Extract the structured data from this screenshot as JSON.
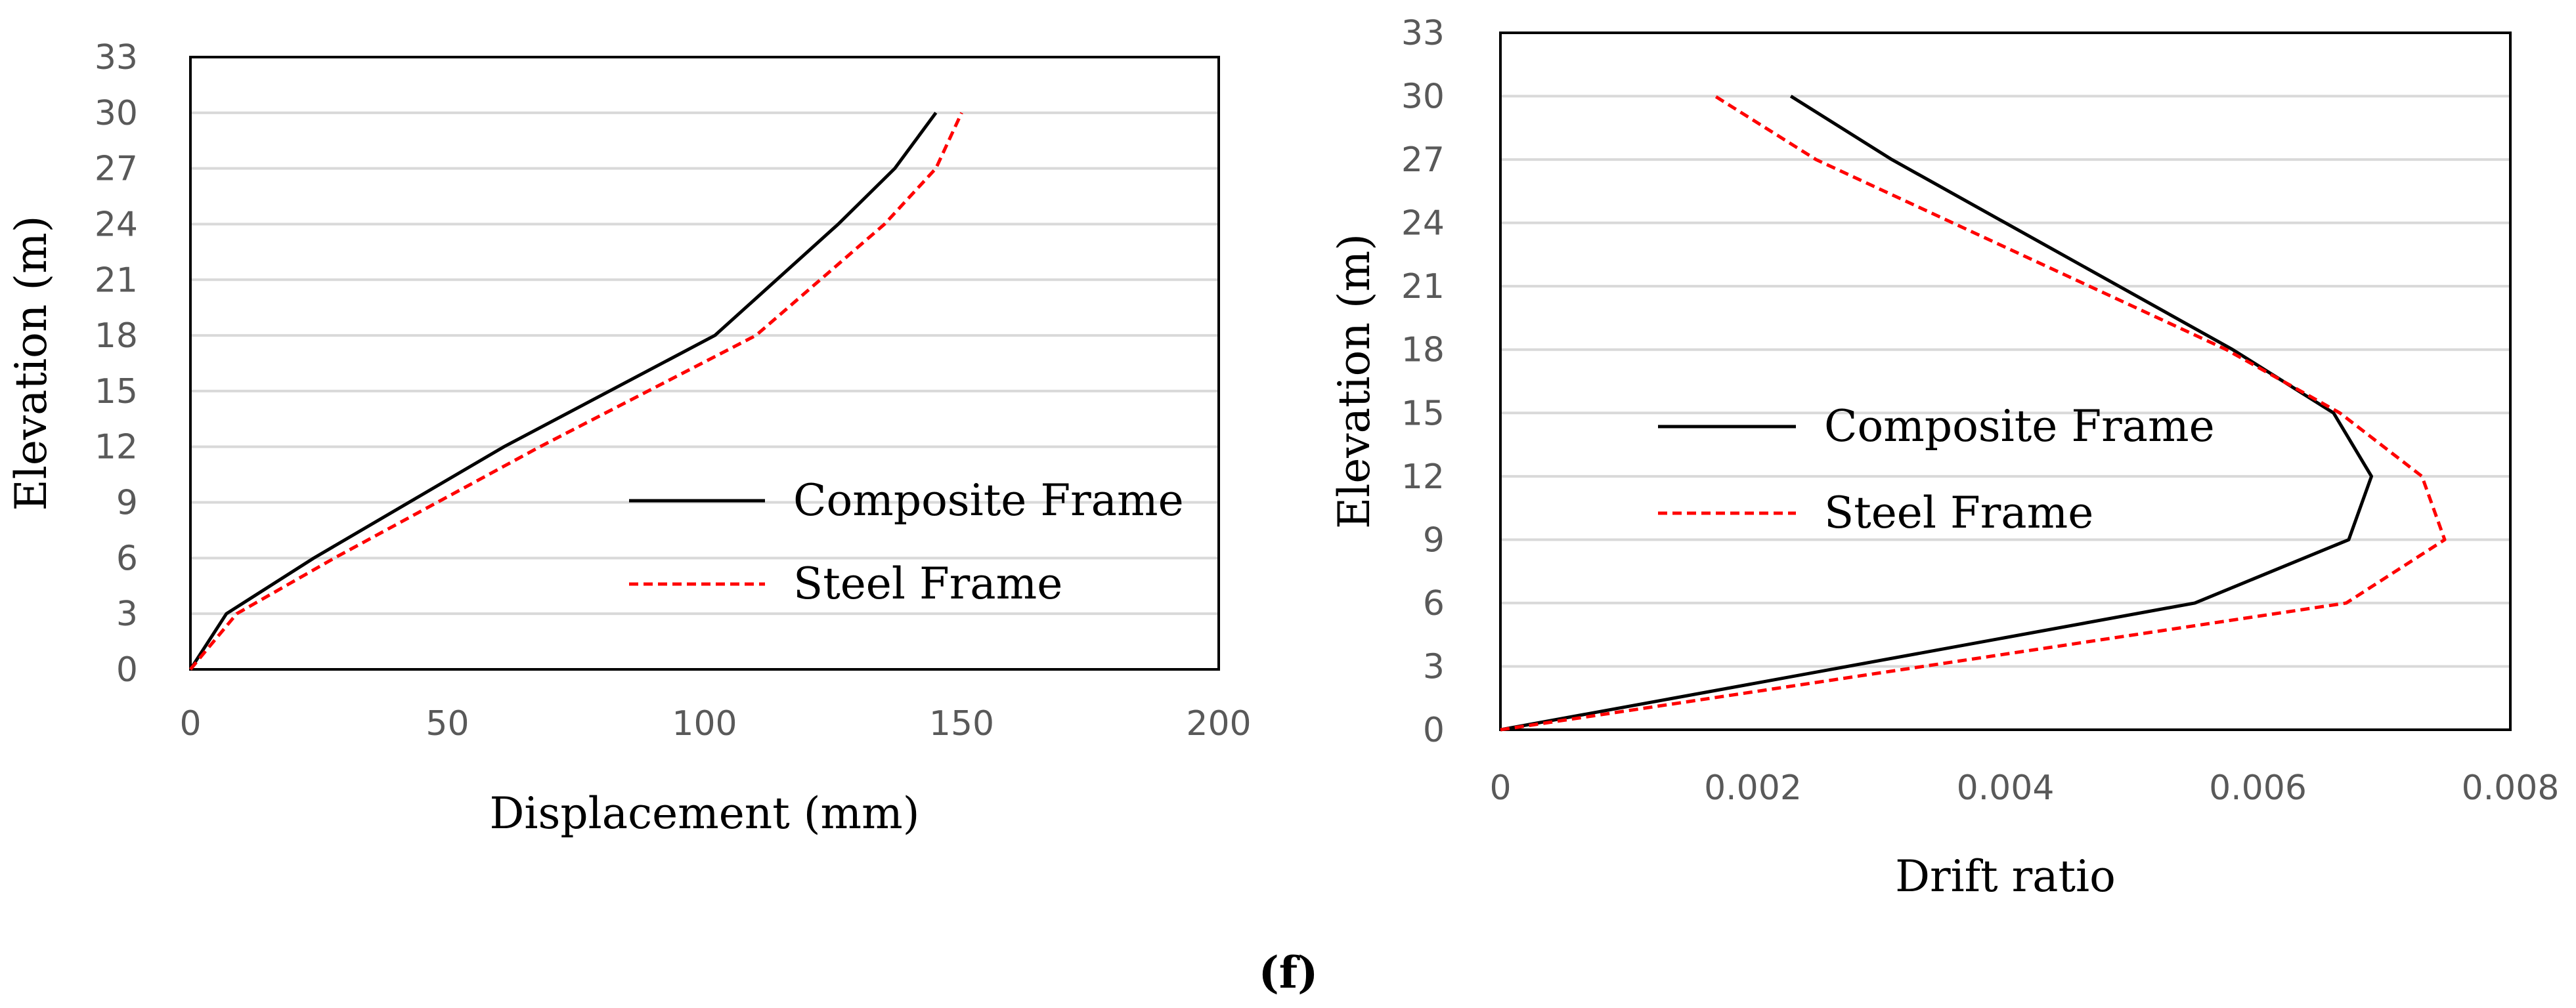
{
  "caption": "(f)",
  "colors": {
    "composite": "#000000",
    "steel": "#ff0000",
    "grid": "#d9d9d9",
    "frame": "#000000",
    "tick": "#595959"
  },
  "chart_data": [
    {
      "type": "line",
      "xlabel": "Displacement (mm)",
      "ylabel": "Elevation (m)",
      "xlim": [
        0,
        200
      ],
      "ylim": [
        0,
        33
      ],
      "xticks": [
        0,
        50,
        100,
        150,
        200
      ],
      "xtick_labels": [
        "0",
        "50",
        "100",
        "150",
        "200"
      ],
      "yticks": [
        0,
        3,
        6,
        9,
        12,
        15,
        18,
        21,
        24,
        27,
        30,
        33
      ],
      "ytick_labels": [
        "0",
        "3",
        "6",
        "9",
        "12",
        "15",
        "18",
        "21",
        "24",
        "27",
        "30",
        "33"
      ],
      "grid": true,
      "legend_position": "lower-right",
      "series": [
        {
          "name": "Composite Frame",
          "style": "solid",
          "color": "#000000",
          "x": [
            0,
            7,
            24,
            61,
            102,
            126,
            137,
            145
          ],
          "y": [
            0,
            3,
            6,
            12,
            18,
            24,
            27,
            30
          ]
        },
        {
          "name": "Steel Frame",
          "style": "dashed",
          "color": "#ff0000",
          "x": [
            0,
            9,
            28,
            68,
            110,
            135,
            145,
            150
          ],
          "y": [
            0,
            3,
            6,
            12,
            18,
            24,
            27,
            30
          ]
        }
      ]
    },
    {
      "type": "line",
      "xlabel": "Drift ratio",
      "ylabel": "Elevation (m)",
      "xlim": [
        0,
        0.008
      ],
      "ylim": [
        0,
        33
      ],
      "xticks": [
        0,
        0.002,
        0.004,
        0.006,
        0.008
      ],
      "xtick_labels": [
        "0",
        "0.002",
        "0.004",
        "0.006",
        "0.008"
      ],
      "yticks": [
        0,
        3,
        6,
        9,
        12,
        15,
        18,
        21,
        24,
        27,
        30,
        33
      ],
      "ytick_labels": [
        "0",
        "3",
        "6",
        "9",
        "12",
        "15",
        "18",
        "21",
        "24",
        "27",
        "30",
        "33"
      ],
      "grid": true,
      "legend_position": "center-left",
      "series": [
        {
          "name": "Composite Frame",
          "style": "solid",
          "color": "#000000",
          "x": [
            0,
            0.0055,
            0.00672,
            0.0069,
            0.0066,
            0.0058,
            0.0031,
            0.0023
          ],
          "y": [
            0,
            6,
            9,
            12,
            15,
            18,
            27,
            30
          ]
        },
        {
          "name": "Steel Frame",
          "style": "dashed",
          "color": "#ff0000",
          "x": [
            0,
            0.0067,
            0.00748,
            0.0073,
            0.00665,
            0.00575,
            0.0025,
            0.0017
          ],
          "y": [
            0,
            6,
            9,
            12,
            15,
            18,
            27,
            30
          ]
        }
      ]
    }
  ]
}
